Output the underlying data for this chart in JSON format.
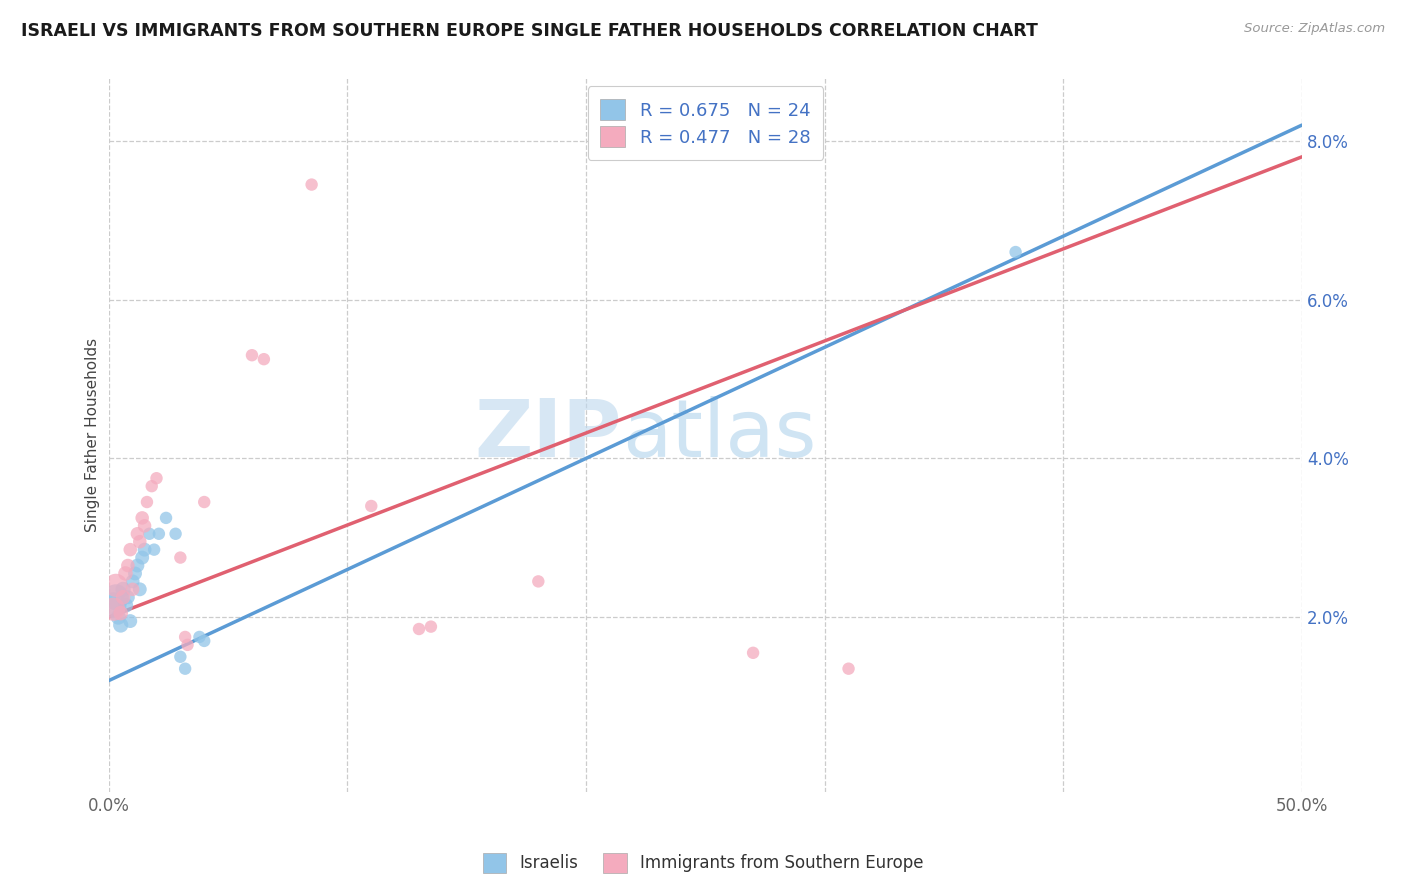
{
  "title": "ISRAELI VS IMMIGRANTS FROM SOUTHERN EUROPE SINGLE FATHER HOUSEHOLDS CORRELATION CHART",
  "source": "Source: ZipAtlas.com",
  "ylabel": "Single Father Households",
  "xlim": [
    0.0,
    0.5
  ],
  "ylim": [
    -0.002,
    0.088
  ],
  "xticks": [
    0.0,
    0.1,
    0.2,
    0.3,
    0.4,
    0.5
  ],
  "xticklabels": [
    "0.0%",
    "",
    "",
    "",
    "",
    "50.0%"
  ],
  "ytick_positions": [
    0.02,
    0.04,
    0.06,
    0.08
  ],
  "ytick_labels": [
    "2.0%",
    "4.0%",
    "6.0%",
    "8.0%"
  ],
  "watermark_zip": "ZIP",
  "watermark_atlas": "atlas",
  "legend1_label": "R = 0.675   N = 24",
  "legend2_label": "R = 0.477   N = 28",
  "legend_label1": "Israelis",
  "legend_label2": "Immigrants from Southern Europe",
  "color_israeli": "#92C5E8",
  "color_southern": "#F4ABBE",
  "color_line_israeli": "#5B9BD5",
  "color_line_southern": "#E06070",
  "grid_color": "#cccccc",
  "background_color": "#ffffff",
  "regression_line_israeli": [
    [
      0.0,
      0.012
    ],
    [
      0.5,
      0.082
    ]
  ],
  "regression_line_southern": [
    [
      0.0,
      0.02
    ],
    [
      0.5,
      0.078
    ]
  ],
  "israeli_points": [
    [
      0.002,
      0.0215
    ],
    [
      0.003,
      0.0225
    ],
    [
      0.004,
      0.02
    ],
    [
      0.005,
      0.019
    ],
    [
      0.006,
      0.0235
    ],
    [
      0.007,
      0.0215
    ],
    [
      0.008,
      0.0225
    ],
    [
      0.009,
      0.0195
    ],
    [
      0.01,
      0.0245
    ],
    [
      0.011,
      0.0255
    ],
    [
      0.012,
      0.0265
    ],
    [
      0.013,
      0.0235
    ],
    [
      0.014,
      0.0275
    ],
    [
      0.015,
      0.0285
    ],
    [
      0.017,
      0.0305
    ],
    [
      0.019,
      0.0285
    ],
    [
      0.021,
      0.0305
    ],
    [
      0.024,
      0.0325
    ],
    [
      0.028,
      0.0305
    ],
    [
      0.03,
      0.015
    ],
    [
      0.032,
      0.0135
    ],
    [
      0.038,
      0.0175
    ],
    [
      0.04,
      0.017
    ],
    [
      0.38,
      0.066
    ]
  ],
  "southern_points": [
    [
      0.002,
      0.021
    ],
    [
      0.003,
      0.024
    ],
    [
      0.005,
      0.0205
    ],
    [
      0.006,
      0.0225
    ],
    [
      0.007,
      0.0255
    ],
    [
      0.008,
      0.0265
    ],
    [
      0.009,
      0.0285
    ],
    [
      0.01,
      0.0235
    ],
    [
      0.012,
      0.0305
    ],
    [
      0.013,
      0.0295
    ],
    [
      0.014,
      0.0325
    ],
    [
      0.015,
      0.0315
    ],
    [
      0.016,
      0.0345
    ],
    [
      0.018,
      0.0365
    ],
    [
      0.02,
      0.0375
    ],
    [
      0.03,
      0.0275
    ],
    [
      0.032,
      0.0175
    ],
    [
      0.033,
      0.0165
    ],
    [
      0.04,
      0.0345
    ],
    [
      0.06,
      0.053
    ],
    [
      0.065,
      0.0525
    ],
    [
      0.085,
      0.0745
    ],
    [
      0.11,
      0.034
    ],
    [
      0.13,
      0.0185
    ],
    [
      0.135,
      0.0188
    ],
    [
      0.18,
      0.0245
    ],
    [
      0.27,
      0.0155
    ],
    [
      0.31,
      0.0135
    ]
  ],
  "israeli_large": [
    0.001,
    0.002
  ],
  "southern_large": [
    0.001
  ]
}
